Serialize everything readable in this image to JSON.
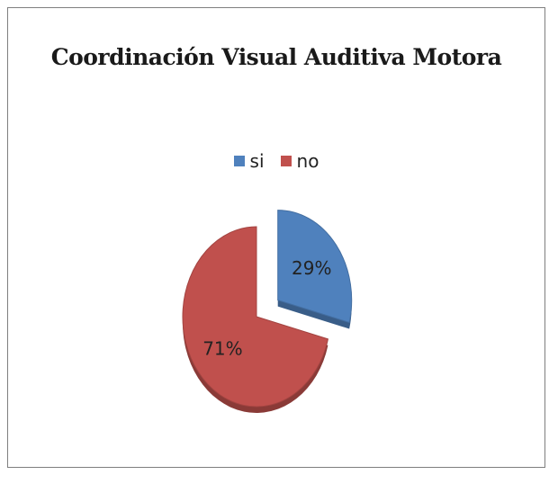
{
  "chart_data": {
    "type": "pie",
    "title": "Coordinación  Visual Auditiva  Motora",
    "categories": [
      "si",
      "no"
    ],
    "values": [
      29,
      71
    ],
    "data_labels": [
      "29%",
      "71%"
    ],
    "colors": [
      "#4f81bd",
      "#c0504d"
    ],
    "exploded": "si",
    "legend_position": "top"
  }
}
